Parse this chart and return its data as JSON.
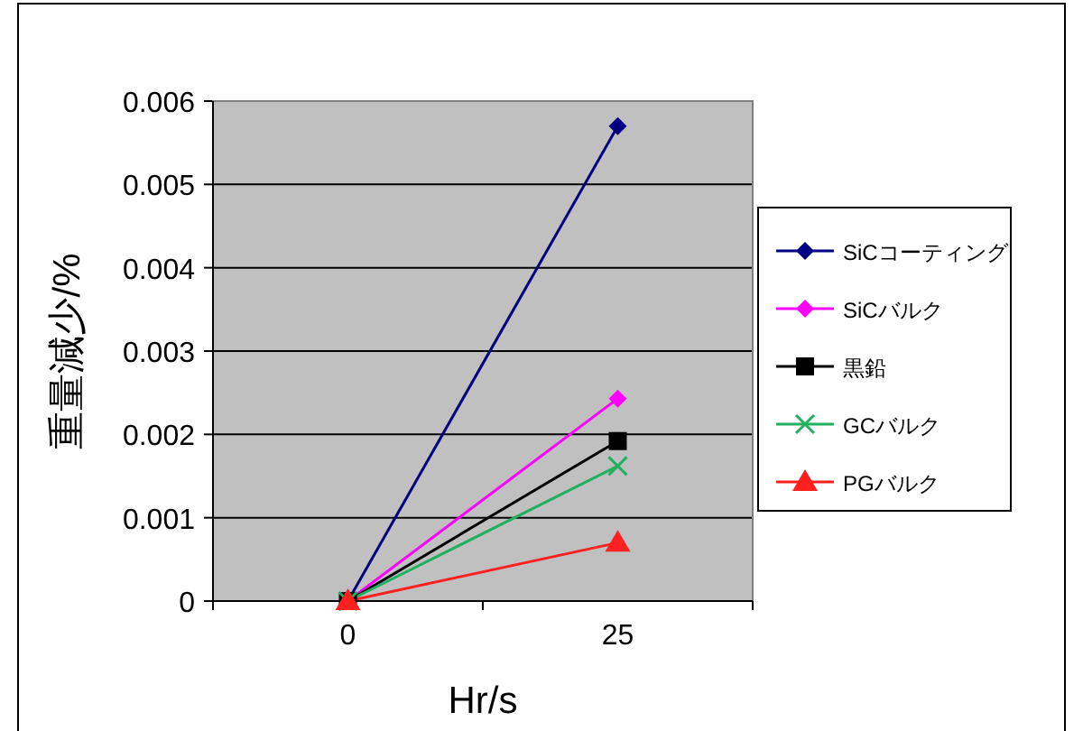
{
  "chart_data": {
    "type": "line",
    "xlabel": "Hr/s",
    "ylabel": "重量減少/%",
    "categories": [
      "0",
      "25"
    ],
    "ylim": [
      0,
      0.006
    ],
    "yticks": [
      0,
      0.001,
      0.002,
      0.003,
      0.004,
      0.005,
      0.006
    ],
    "grid": "y",
    "legend": "right",
    "series": [
      {
        "name": "SiCコーティング",
        "color": "#000080",
        "marker": "diamond",
        "values": [
          0,
          0.0057
        ]
      },
      {
        "name": "SiCバルク",
        "color": "#ff00ff",
        "marker": "diamond",
        "values": [
          0,
          0.00243
        ]
      },
      {
        "name": "黒鉛",
        "color": "#000000",
        "marker": "square",
        "values": [
          0,
          0.00192
        ]
      },
      {
        "name": "GCバルク",
        "color": "#22b060",
        "marker": "cross",
        "values": [
          0,
          0.00162
        ]
      },
      {
        "name": "PGバルク",
        "color": "#ff2020",
        "marker": "triangle",
        "values": [
          0,
          0.0007
        ]
      }
    ]
  }
}
